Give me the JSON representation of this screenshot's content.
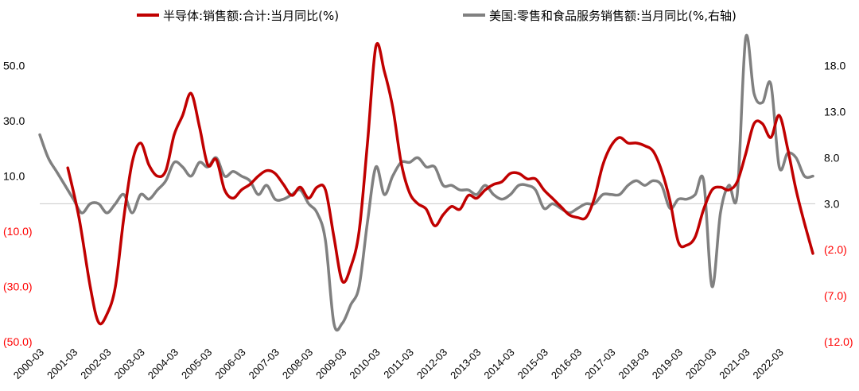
{
  "colors": {
    "series1": "#C00000",
    "series2": "#808080",
    "negative_label": "#FF0000",
    "axis": "#C8C8C8"
  },
  "chart_data": {
    "type": "line",
    "title": "",
    "xlabel": "",
    "ylabel": "",
    "legend_position": "top",
    "grid": false,
    "x_tick_labels": [
      "2000-03",
      "2001-03",
      "2002-03",
      "2003-03",
      "2004-03",
      "2005-03",
      "2006-03",
      "2007-03",
      "2008-03",
      "2009-03",
      "2010-03",
      "2011-03",
      "2012-03",
      "2013-03",
      "2014-03",
      "2015-03",
      "2016-03",
      "2017-03",
      "2018-03",
      "2019-03",
      "2020-03",
      "2021-03",
      "2022-03"
    ],
    "x_range": [
      "2000-03",
      "2023-03"
    ],
    "left_axis": {
      "range": [
        -50,
        60
      ],
      "tick_values": [
        50,
        30,
        10,
        -10,
        -30,
        -50
      ],
      "tick_labels": [
        "50.0",
        "30.0",
        "10.0",
        "(10.0)",
        "(30.0)",
        "(50.0)"
      ]
    },
    "right_axis": {
      "range": [
        -12,
        21
      ],
      "tick_values": [
        18,
        13,
        8,
        3,
        -2,
        -7,
        -12
      ],
      "tick_labels": [
        "18.0",
        "13.0",
        "8.0",
        "3.0",
        "(2.0)",
        "(7.0)",
        "(12.0)"
      ]
    },
    "series": [
      {
        "name": "半导体:销售额:合计:当月同比(%)",
        "axis": "left",
        "points": [
          [
            "2001-01",
            13
          ],
          [
            "2001-05",
            -5
          ],
          [
            "2001-09",
            -30
          ],
          [
            "2001-12",
            -43
          ],
          [
            "2002-03",
            -40
          ],
          [
            "2002-06",
            -30
          ],
          [
            "2002-09",
            -5
          ],
          [
            "2002-12",
            15
          ],
          [
            "2003-03",
            22
          ],
          [
            "2003-06",
            14
          ],
          [
            "2003-09",
            10
          ],
          [
            "2003-12",
            12
          ],
          [
            "2004-03",
            25
          ],
          [
            "2004-06",
            32
          ],
          [
            "2004-09",
            40
          ],
          [
            "2004-12",
            28
          ],
          [
            "2005-03",
            14
          ],
          [
            "2005-06",
            16
          ],
          [
            "2005-09",
            5
          ],
          [
            "2005-12",
            2
          ],
          [
            "2006-03",
            5
          ],
          [
            "2006-06",
            7
          ],
          [
            "2006-09",
            10
          ],
          [
            "2006-12",
            12
          ],
          [
            "2007-03",
            11
          ],
          [
            "2007-06",
            7
          ],
          [
            "2007-09",
            3
          ],
          [
            "2007-12",
            6
          ],
          [
            "2008-03",
            2
          ],
          [
            "2008-06",
            6
          ],
          [
            "2008-09",
            5
          ],
          [
            "2008-12",
            -12
          ],
          [
            "2009-03",
            -28
          ],
          [
            "2009-06",
            -23
          ],
          [
            "2009-09",
            -10
          ],
          [
            "2009-12",
            22
          ],
          [
            "2010-03",
            57
          ],
          [
            "2010-06",
            48
          ],
          [
            "2010-09",
            35
          ],
          [
            "2010-12",
            15
          ],
          [
            "2011-03",
            4
          ],
          [
            "2011-06",
            0
          ],
          [
            "2011-09",
            -2
          ],
          [
            "2011-12",
            -8
          ],
          [
            "2012-03",
            -4
          ],
          [
            "2012-06",
            -1
          ],
          [
            "2012-09",
            -2
          ],
          [
            "2012-12",
            3
          ],
          [
            "2013-03",
            2
          ],
          [
            "2013-06",
            5
          ],
          [
            "2013-09",
            7
          ],
          [
            "2013-12",
            8
          ],
          [
            "2014-03",
            11
          ],
          [
            "2014-06",
            11
          ],
          [
            "2014-09",
            9
          ],
          [
            "2014-12",
            9
          ],
          [
            "2015-03",
            5
          ],
          [
            "2015-06",
            2
          ],
          [
            "2015-09",
            -1
          ],
          [
            "2015-12",
            -4
          ],
          [
            "2016-03",
            -5
          ],
          [
            "2016-06",
            -5
          ],
          [
            "2016-09",
            2
          ],
          [
            "2016-12",
            14
          ],
          [
            "2017-03",
            21
          ],
          [
            "2017-06",
            24
          ],
          [
            "2017-09",
            22
          ],
          [
            "2017-12",
            22
          ],
          [
            "2018-03",
            21
          ],
          [
            "2018-06",
            19
          ],
          [
            "2018-09",
            12
          ],
          [
            "2018-12",
            1
          ],
          [
            "2019-03",
            -14
          ],
          [
            "2019-06",
            -15
          ],
          [
            "2019-09",
            -12
          ],
          [
            "2019-12",
            -2
          ],
          [
            "2020-03",
            5
          ],
          [
            "2020-06",
            6
          ],
          [
            "2020-09",
            5
          ],
          [
            "2020-12",
            8
          ],
          [
            "2021-03",
            18
          ],
          [
            "2021-06",
            29
          ],
          [
            "2021-09",
            29
          ],
          [
            "2021-12",
            24
          ],
          [
            "2022-03",
            32
          ],
          [
            "2022-06",
            20
          ],
          [
            "2022-09",
            5
          ],
          [
            "2022-12",
            -7
          ],
          [
            "2023-03",
            -18
          ]
        ]
      },
      {
        "name": "美国:零售和食品服务销售额:当月同比(%,右轴)",
        "axis": "right",
        "points": [
          [
            "2000-03",
            10.5
          ],
          [
            "2000-06",
            8
          ],
          [
            "2000-09",
            6.5
          ],
          [
            "2000-12",
            5
          ],
          [
            "2001-03",
            3.5
          ],
          [
            "2001-06",
            2
          ],
          [
            "2001-09",
            3
          ],
          [
            "2001-12",
            3
          ],
          [
            "2002-03",
            2
          ],
          [
            "2002-06",
            3
          ],
          [
            "2002-09",
            4
          ],
          [
            "2002-12",
            2
          ],
          [
            "2003-03",
            4
          ],
          [
            "2003-06",
            3.5
          ],
          [
            "2003-09",
            4.5
          ],
          [
            "2003-12",
            5.5
          ],
          [
            "2004-03",
            7.5
          ],
          [
            "2004-06",
            7
          ],
          [
            "2004-09",
            6
          ],
          [
            "2004-12",
            7.5
          ],
          [
            "2005-03",
            7
          ],
          [
            "2005-06",
            8
          ],
          [
            "2005-09",
            6
          ],
          [
            "2005-12",
            6.5
          ],
          [
            "2006-03",
            6
          ],
          [
            "2006-06",
            5.5
          ],
          [
            "2006-09",
            4
          ],
          [
            "2006-12",
            5
          ],
          [
            "2007-03",
            3.5
          ],
          [
            "2007-06",
            3.5
          ],
          [
            "2007-09",
            4
          ],
          [
            "2007-12",
            4.5
          ],
          [
            "2008-03",
            3
          ],
          [
            "2008-06",
            2
          ],
          [
            "2008-09",
            -1
          ],
          [
            "2008-12",
            -10
          ],
          [
            "2009-03",
            -10
          ],
          [
            "2009-06",
            -8
          ],
          [
            "2009-09",
            -6
          ],
          [
            "2009-12",
            1
          ],
          [
            "2010-03",
            7
          ],
          [
            "2010-06",
            4
          ],
          [
            "2010-09",
            6
          ],
          [
            "2010-12",
            7.5
          ],
          [
            "2011-03",
            7.5
          ],
          [
            "2011-06",
            8
          ],
          [
            "2011-09",
            7
          ],
          [
            "2011-12",
            7
          ],
          [
            "2012-03",
            5
          ],
          [
            "2012-06",
            5
          ],
          [
            "2012-09",
            4.5
          ],
          [
            "2012-12",
            4.5
          ],
          [
            "2013-03",
            4
          ],
          [
            "2013-06",
            5
          ],
          [
            "2013-09",
            4
          ],
          [
            "2013-12",
            3.5
          ],
          [
            "2014-03",
            4
          ],
          [
            "2014-06",
            5
          ],
          [
            "2014-09",
            5
          ],
          [
            "2014-12",
            4.5
          ],
          [
            "2015-03",
            2.5
          ],
          [
            "2015-06",
            3
          ],
          [
            "2015-09",
            2.5
          ],
          [
            "2015-12",
            2
          ],
          [
            "2016-03",
            2.5
          ],
          [
            "2016-06",
            3
          ],
          [
            "2016-09",
            3
          ],
          [
            "2016-12",
            4
          ],
          [
            "2017-03",
            4
          ],
          [
            "2017-06",
            4
          ],
          [
            "2017-09",
            5
          ],
          [
            "2017-12",
            5.5
          ],
          [
            "2018-03",
            5
          ],
          [
            "2018-06",
            5.5
          ],
          [
            "2018-09",
            5
          ],
          [
            "2018-12",
            2.5
          ],
          [
            "2019-03",
            3.5
          ],
          [
            "2019-06",
            3.5
          ],
          [
            "2019-09",
            4
          ],
          [
            "2019-12",
            5.5
          ],
          [
            "2020-03",
            -6
          ],
          [
            "2020-06",
            2
          ],
          [
            "2020-09",
            5
          ],
          [
            "2020-12",
            4
          ],
          [
            "2021-03",
            21
          ],
          [
            "2021-06",
            15
          ],
          [
            "2021-09",
            14
          ],
          [
            "2021-12",
            16
          ],
          [
            "2022-03",
            7
          ],
          [
            "2022-06",
            8.5
          ],
          [
            "2022-09",
            8
          ],
          [
            "2022-12",
            6
          ],
          [
            "2023-03",
            6
          ]
        ]
      }
    ]
  }
}
